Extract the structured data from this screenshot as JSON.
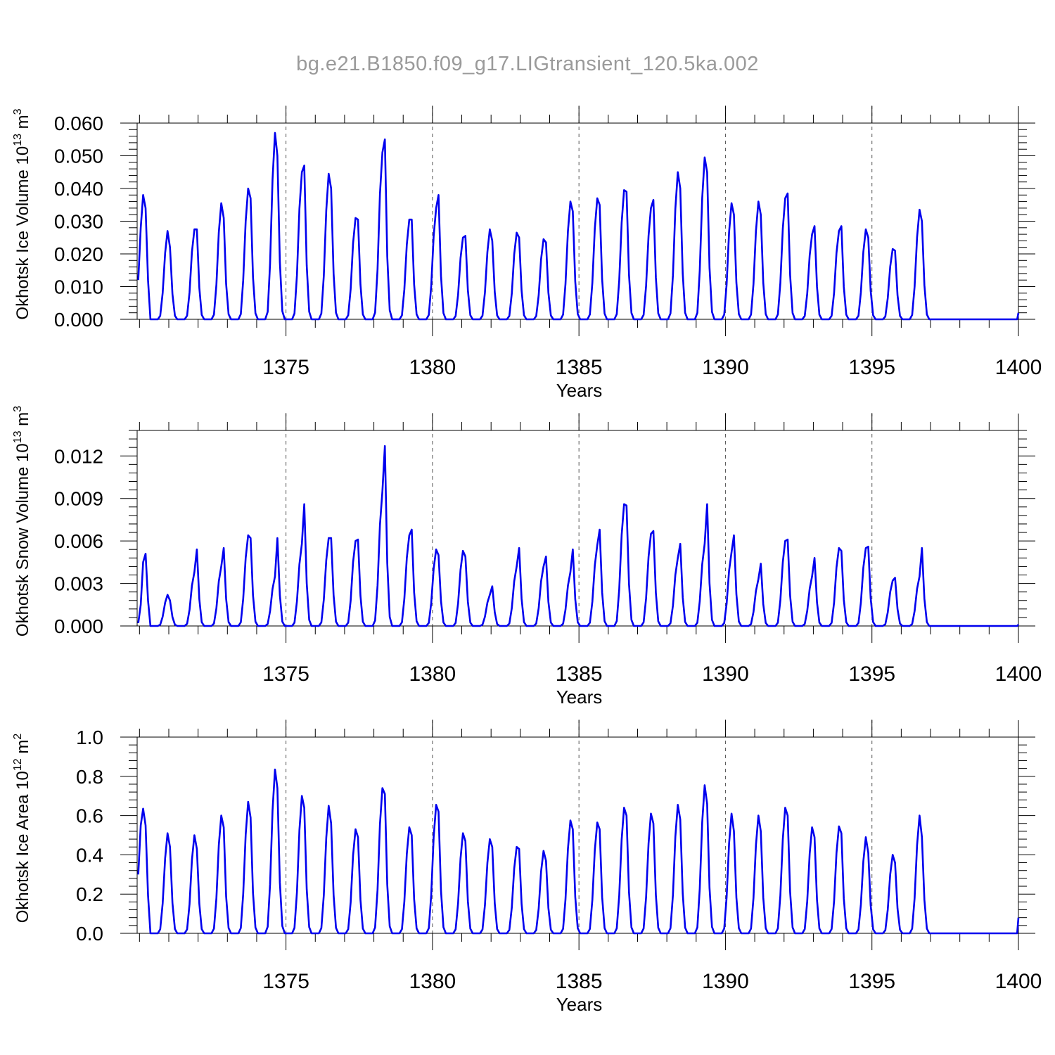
{
  "title": "bg.e21.B1850.f09_g17.LIGtransient_120.5ka.002",
  "colors": {
    "series": "#0000ee",
    "title": "#9a9a9a",
    "grid": "#555555"
  },
  "chart_data": [
    {
      "type": "line",
      "ylabel_main": "Okhotsk Ice Volume 10",
      "ylabel_exp": "13",
      "ylabel_unit": " m",
      "ylabel_unit_exp": "3",
      "xlabel": "Years",
      "xlim": [
        1369.92,
        1400
      ],
      "ylim": [
        0,
        0.06
      ],
      "yticks": [
        0,
        0.01,
        0.02,
        0.03,
        0.04,
        0.05,
        0.06
      ],
      "ytick_labels": [
        "0.000",
        "0.010",
        "0.020",
        "0.030",
        "0.040",
        "0.050",
        "0.060"
      ],
      "xticks": [
        1375,
        1380,
        1385,
        1390,
        1395,
        1400
      ],
      "xtick_labels": [
        "1375",
        "1380",
        "1385",
        "1390",
        "1395",
        "1400"
      ],
      "series": [
        {
          "name": "Ice Volume",
          "start": 1369.958,
          "step": 0.08333,
          "first": [
            0.012,
            0.028,
            0.038,
            0.034
          ],
          "peaks": [
            [
              0.038,
              0.034
            ],
            [
              0.027,
              0.022
            ],
            [
              0.0275,
              0.0275
            ],
            [
              0.0355,
              0.031
            ],
            [
              0.04,
              0.037
            ],
            [
              0.057,
              0.05
            ],
            [
              0.045,
              0.047
            ],
            [
              0.0445,
              0.04
            ],
            [
              0.031,
              0.0305
            ],
            [
              0.051,
              0.055
            ],
            [
              0.0305,
              0.0305
            ],
            [
              0.034,
              0.038
            ],
            [
              0.025,
              0.0255
            ],
            [
              0.0275,
              0.024
            ],
            [
              0.0265,
              0.025
            ],
            [
              0.0245,
              0.0235
            ],
            [
              0.036,
              0.033
            ],
            [
              0.037,
              0.035
            ],
            [
              0.0395,
              0.039
            ],
            [
              0.034,
              0.0365
            ],
            [
              0.045,
              0.04
            ],
            [
              0.0495,
              0.045
            ],
            [
              0.0355,
              0.032
            ],
            [
              0.036,
              0.032
            ],
            [
              0.037,
              0.0385
            ],
            [
              0.026,
              0.0285
            ],
            [
              0.027,
              0.0285
            ],
            [
              0.0275,
              0.025
            ],
            [
              0.0215,
              0.021
            ],
            [
              0.0335,
              0.03
            ]
          ],
          "end_value": 0.002
        }
      ]
    },
    {
      "type": "line",
      "ylabel_main": "Okhotsk Snow Volume 10",
      "ylabel_exp": "13",
      "ylabel_unit": " m",
      "ylabel_unit_exp": "3",
      "xlabel": "Years",
      "xlim": [
        1369.92,
        1400
      ],
      "ylim": [
        0,
        0.0138
      ],
      "yticks": [
        0,
        0.003,
        0.006,
        0.009,
        0.012
      ],
      "ytick_labels": [
        "0.000",
        "0.003",
        "0.006",
        "0.009",
        "0.012"
      ],
      "xticks": [
        1375,
        1380,
        1385,
        1390,
        1395,
        1400
      ],
      "xtick_labels": [
        "1375",
        "1380",
        "1385",
        "1390",
        "1395",
        "1400"
      ],
      "series": [
        {
          "name": "Snow Volume",
          "start": 1369.958,
          "step": 0.08333,
          "first": [
            0.0002,
            0.0015,
            0.0045,
            0.0051
          ],
          "peaks": [
            [
              0.0046,
              0.0051
            ],
            [
              0.0022,
              0.0018
            ],
            [
              0.0038,
              0.0054
            ],
            [
              0.0042,
              0.0055
            ],
            [
              0.0064,
              0.0062
            ],
            [
              0.0035,
              0.0062
            ],
            [
              0.0058,
              0.0086
            ],
            [
              0.0062,
              0.0062
            ],
            [
              0.006,
              0.0061
            ],
            [
              0.0095,
              0.0127
            ],
            [
              0.0064,
              0.0068
            ],
            [
              0.0054,
              0.005
            ],
            [
              0.0053,
              0.0049
            ],
            [
              0.0022,
              0.0028
            ],
            [
              0.0042,
              0.0055
            ],
            [
              0.0042,
              0.0049
            ],
            [
              0.0038,
              0.0054
            ],
            [
              0.0057,
              0.0068
            ],
            [
              0.0086,
              0.0085
            ],
            [
              0.0065,
              0.0067
            ],
            [
              0.0048,
              0.0058
            ],
            [
              0.0058,
              0.0086
            ],
            [
              0.0052,
              0.0064
            ],
            [
              0.0033,
              0.0044
            ],
            [
              0.006,
              0.0061
            ],
            [
              0.0035,
              0.0048
            ],
            [
              0.0055,
              0.0053
            ],
            [
              0.0055,
              0.0056
            ],
            [
              0.0032,
              0.0034
            ],
            [
              0.0035,
              0.0055
            ]
          ],
          "end_value": 0.0001
        }
      ]
    },
    {
      "type": "line",
      "ylabel_main": "Okhotsk Ice Area 10",
      "ylabel_exp": "12",
      "ylabel_unit": " m",
      "ylabel_unit_exp": "2",
      "xlabel": "Years",
      "xlim": [
        1369.92,
        1400
      ],
      "ylim": [
        0,
        1.0
      ],
      "yticks": [
        0,
        0.2,
        0.4,
        0.6,
        0.8,
        1.0
      ],
      "ytick_labels": [
        "0.0",
        "0.2",
        "0.4",
        "0.6",
        "0.8",
        "1.0"
      ],
      "xticks": [
        1375,
        1380,
        1385,
        1390,
        1395,
        1400
      ],
      "xtick_labels": [
        "1375",
        "1380",
        "1385",
        "1390",
        "1395",
        "1400"
      ],
      "series": [
        {
          "name": "Ice Area",
          "start": 1369.958,
          "step": 0.08333,
          "first": [
            0.3,
            0.55,
            0.635,
            0.55
          ],
          "peaks": [
            [
              0.635,
              0.55
            ],
            [
              0.51,
              0.44
            ],
            [
              0.5,
              0.43
            ],
            [
              0.6,
              0.54
            ],
            [
              0.67,
              0.59
            ],
            [
              0.835,
              0.74
            ],
            [
              0.7,
              0.64
            ],
            [
              0.65,
              0.56
            ],
            [
              0.53,
              0.49
            ],
            [
              0.74,
              0.71
            ],
            [
              0.54,
              0.5
            ],
            [
              0.655,
              0.62
            ],
            [
              0.51,
              0.47
            ],
            [
              0.48,
              0.44
            ],
            [
              0.44,
              0.43
            ],
            [
              0.42,
              0.37
            ],
            [
              0.575,
              0.53
            ],
            [
              0.565,
              0.53
            ],
            [
              0.64,
              0.6
            ],
            [
              0.61,
              0.56
            ],
            [
              0.655,
              0.58
            ],
            [
              0.755,
              0.66
            ],
            [
              0.61,
              0.52
            ],
            [
              0.6,
              0.52
            ],
            [
              0.64,
              0.6
            ],
            [
              0.54,
              0.49
            ],
            [
              0.545,
              0.51
            ],
            [
              0.49,
              0.41
            ],
            [
              0.4,
              0.36
            ],
            [
              0.6,
              0.49
            ]
          ],
          "end_value": 0.08
        }
      ]
    }
  ]
}
